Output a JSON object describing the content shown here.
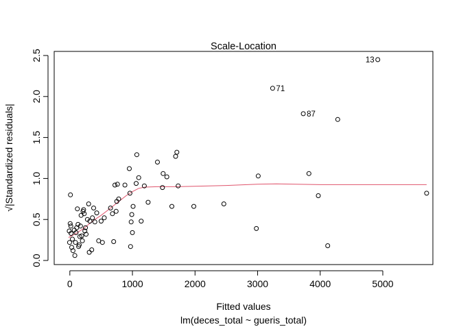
{
  "chart_data": {
    "type": "scatter",
    "title": "Scale-Location",
    "xlabel": "Fitted values",
    "xlabel2": "lm(deces_total ~ gueris_total)",
    "ylabel": "√|Standardized residuals|",
    "xlim": [
      -250,
      5800
    ],
    "ylim": [
      -0.05,
      2.55
    ],
    "xticks": [
      0,
      1000,
      2000,
      3000,
      4000,
      5000
    ],
    "xtick_labels": [
      "0",
      "1000",
      "2000",
      "3000",
      "4000",
      "5000"
    ],
    "yticks": [
      0.0,
      0.5,
      1.0,
      1.5,
      2.0,
      2.5
    ],
    "ytick_labels": [
      "0.0",
      "0.5",
      "1.0",
      "1.5",
      "2.0",
      "2.5"
    ],
    "grid": false,
    "point_color": "#000000",
    "smooth_color": "#DF536B",
    "points": [
      [
        5,
        0.45
      ],
      [
        10,
        0.8
      ],
      [
        15,
        0.42
      ],
      [
        -10,
        0.36
      ],
      [
        20,
        0.33
      ],
      [
        -5,
        0.22
      ],
      [
        30,
        0.16
      ],
      [
        50,
        0.12
      ],
      [
        40,
        0.26
      ],
      [
        70,
        0.37
      ],
      [
        80,
        0.06
      ],
      [
        90,
        0.22
      ],
      [
        100,
        0.34
      ],
      [
        110,
        0.4
      ],
      [
        120,
        0.63
      ],
      [
        130,
        0.44
      ],
      [
        140,
        0.17
      ],
      [
        150,
        0.19
      ],
      [
        160,
        0.29
      ],
      [
        170,
        0.42
      ],
      [
        180,
        0.55
      ],
      [
        190,
        0.3
      ],
      [
        200,
        0.24
      ],
      [
        210,
        0.6
      ],
      [
        220,
        0.62
      ],
      [
        230,
        0.57
      ],
      [
        240,
        0.36
      ],
      [
        250,
        0.4
      ],
      [
        260,
        0.32
      ],
      [
        280,
        0.5
      ],
      [
        300,
        0.69
      ],
      [
        310,
        0.1
      ],
      [
        320,
        0.48
      ],
      [
        350,
        0.13
      ],
      [
        360,
        0.52
      ],
      [
        380,
        0.64
      ],
      [
        400,
        0.47
      ],
      [
        430,
        0.58
      ],
      [
        460,
        0.24
      ],
      [
        500,
        0.48
      ],
      [
        520,
        0.22
      ],
      [
        550,
        0.52
      ],
      [
        650,
        0.64
      ],
      [
        680,
        0.57
      ],
      [
        700,
        0.23
      ],
      [
        720,
        0.92
      ],
      [
        740,
        0.6
      ],
      [
        750,
        0.72
      ],
      [
        760,
        0.93
      ],
      [
        780,
        0.75
      ],
      [
        880,
        0.92
      ],
      [
        950,
        1.12
      ],
      [
        960,
        0.82
      ],
      [
        970,
        0.17
      ],
      [
        980,
        0.47
      ],
      [
        990,
        0.56
      ],
      [
        1000,
        0.34
      ],
      [
        1010,
        0.66
      ],
      [
        1060,
        0.94
      ],
      [
        1070,
        1.29
      ],
      [
        1100,
        1.01
      ],
      [
        1140,
        0.48
      ],
      [
        1190,
        0.91
      ],
      [
        1250,
        0.71
      ],
      [
        1400,
        1.2
      ],
      [
        1480,
        0.89
      ],
      [
        1490,
        1.06
      ],
      [
        1550,
        1.02
      ],
      [
        1630,
        0.66
      ],
      [
        1690,
        1.27
      ],
      [
        1710,
        1.32
      ],
      [
        1730,
        0.91
      ],
      [
        1980,
        0.66
      ],
      [
        2460,
        0.69
      ],
      [
        2980,
        0.39
      ],
      [
        3010,
        1.03
      ],
      [
        3240,
        2.1
      ],
      [
        3730,
        1.79
      ],
      [
        3820,
        1.06
      ],
      [
        3970,
        0.79
      ],
      [
        4120,
        0.18
      ],
      [
        4280,
        1.72
      ],
      [
        4920,
        2.45
      ],
      [
        5700,
        0.82
      ]
    ],
    "labeled_points": [
      {
        "label": "13",
        "x": 4920,
        "y": 2.45,
        "side": "left"
      },
      {
        "label": "71",
        "x": 3240,
        "y": 2.1,
        "side": "right"
      },
      {
        "label": "87",
        "x": 3730,
        "y": 1.79,
        "side": "right"
      }
    ],
    "smooth_line": [
      [
        -20,
        0.28
      ],
      [
        100,
        0.33
      ],
      [
        200,
        0.38
      ],
      [
        300,
        0.44
      ],
      [
        400,
        0.5
      ],
      [
        500,
        0.55
      ],
      [
        600,
        0.61
      ],
      [
        700,
        0.67
      ],
      [
        800,
        0.73
      ],
      [
        900,
        0.79
      ],
      [
        1000,
        0.84
      ],
      [
        1100,
        0.88
      ],
      [
        1200,
        0.895
      ],
      [
        1400,
        0.9
      ],
      [
        1700,
        0.9
      ],
      [
        2000,
        0.905
      ],
      [
        2500,
        0.915
      ],
      [
        3000,
        0.93
      ],
      [
        3300,
        0.935
      ],
      [
        3600,
        0.93
      ],
      [
        4000,
        0.925
      ],
      [
        4500,
        0.925
      ],
      [
        5000,
        0.925
      ],
      [
        5700,
        0.925
      ]
    ]
  }
}
